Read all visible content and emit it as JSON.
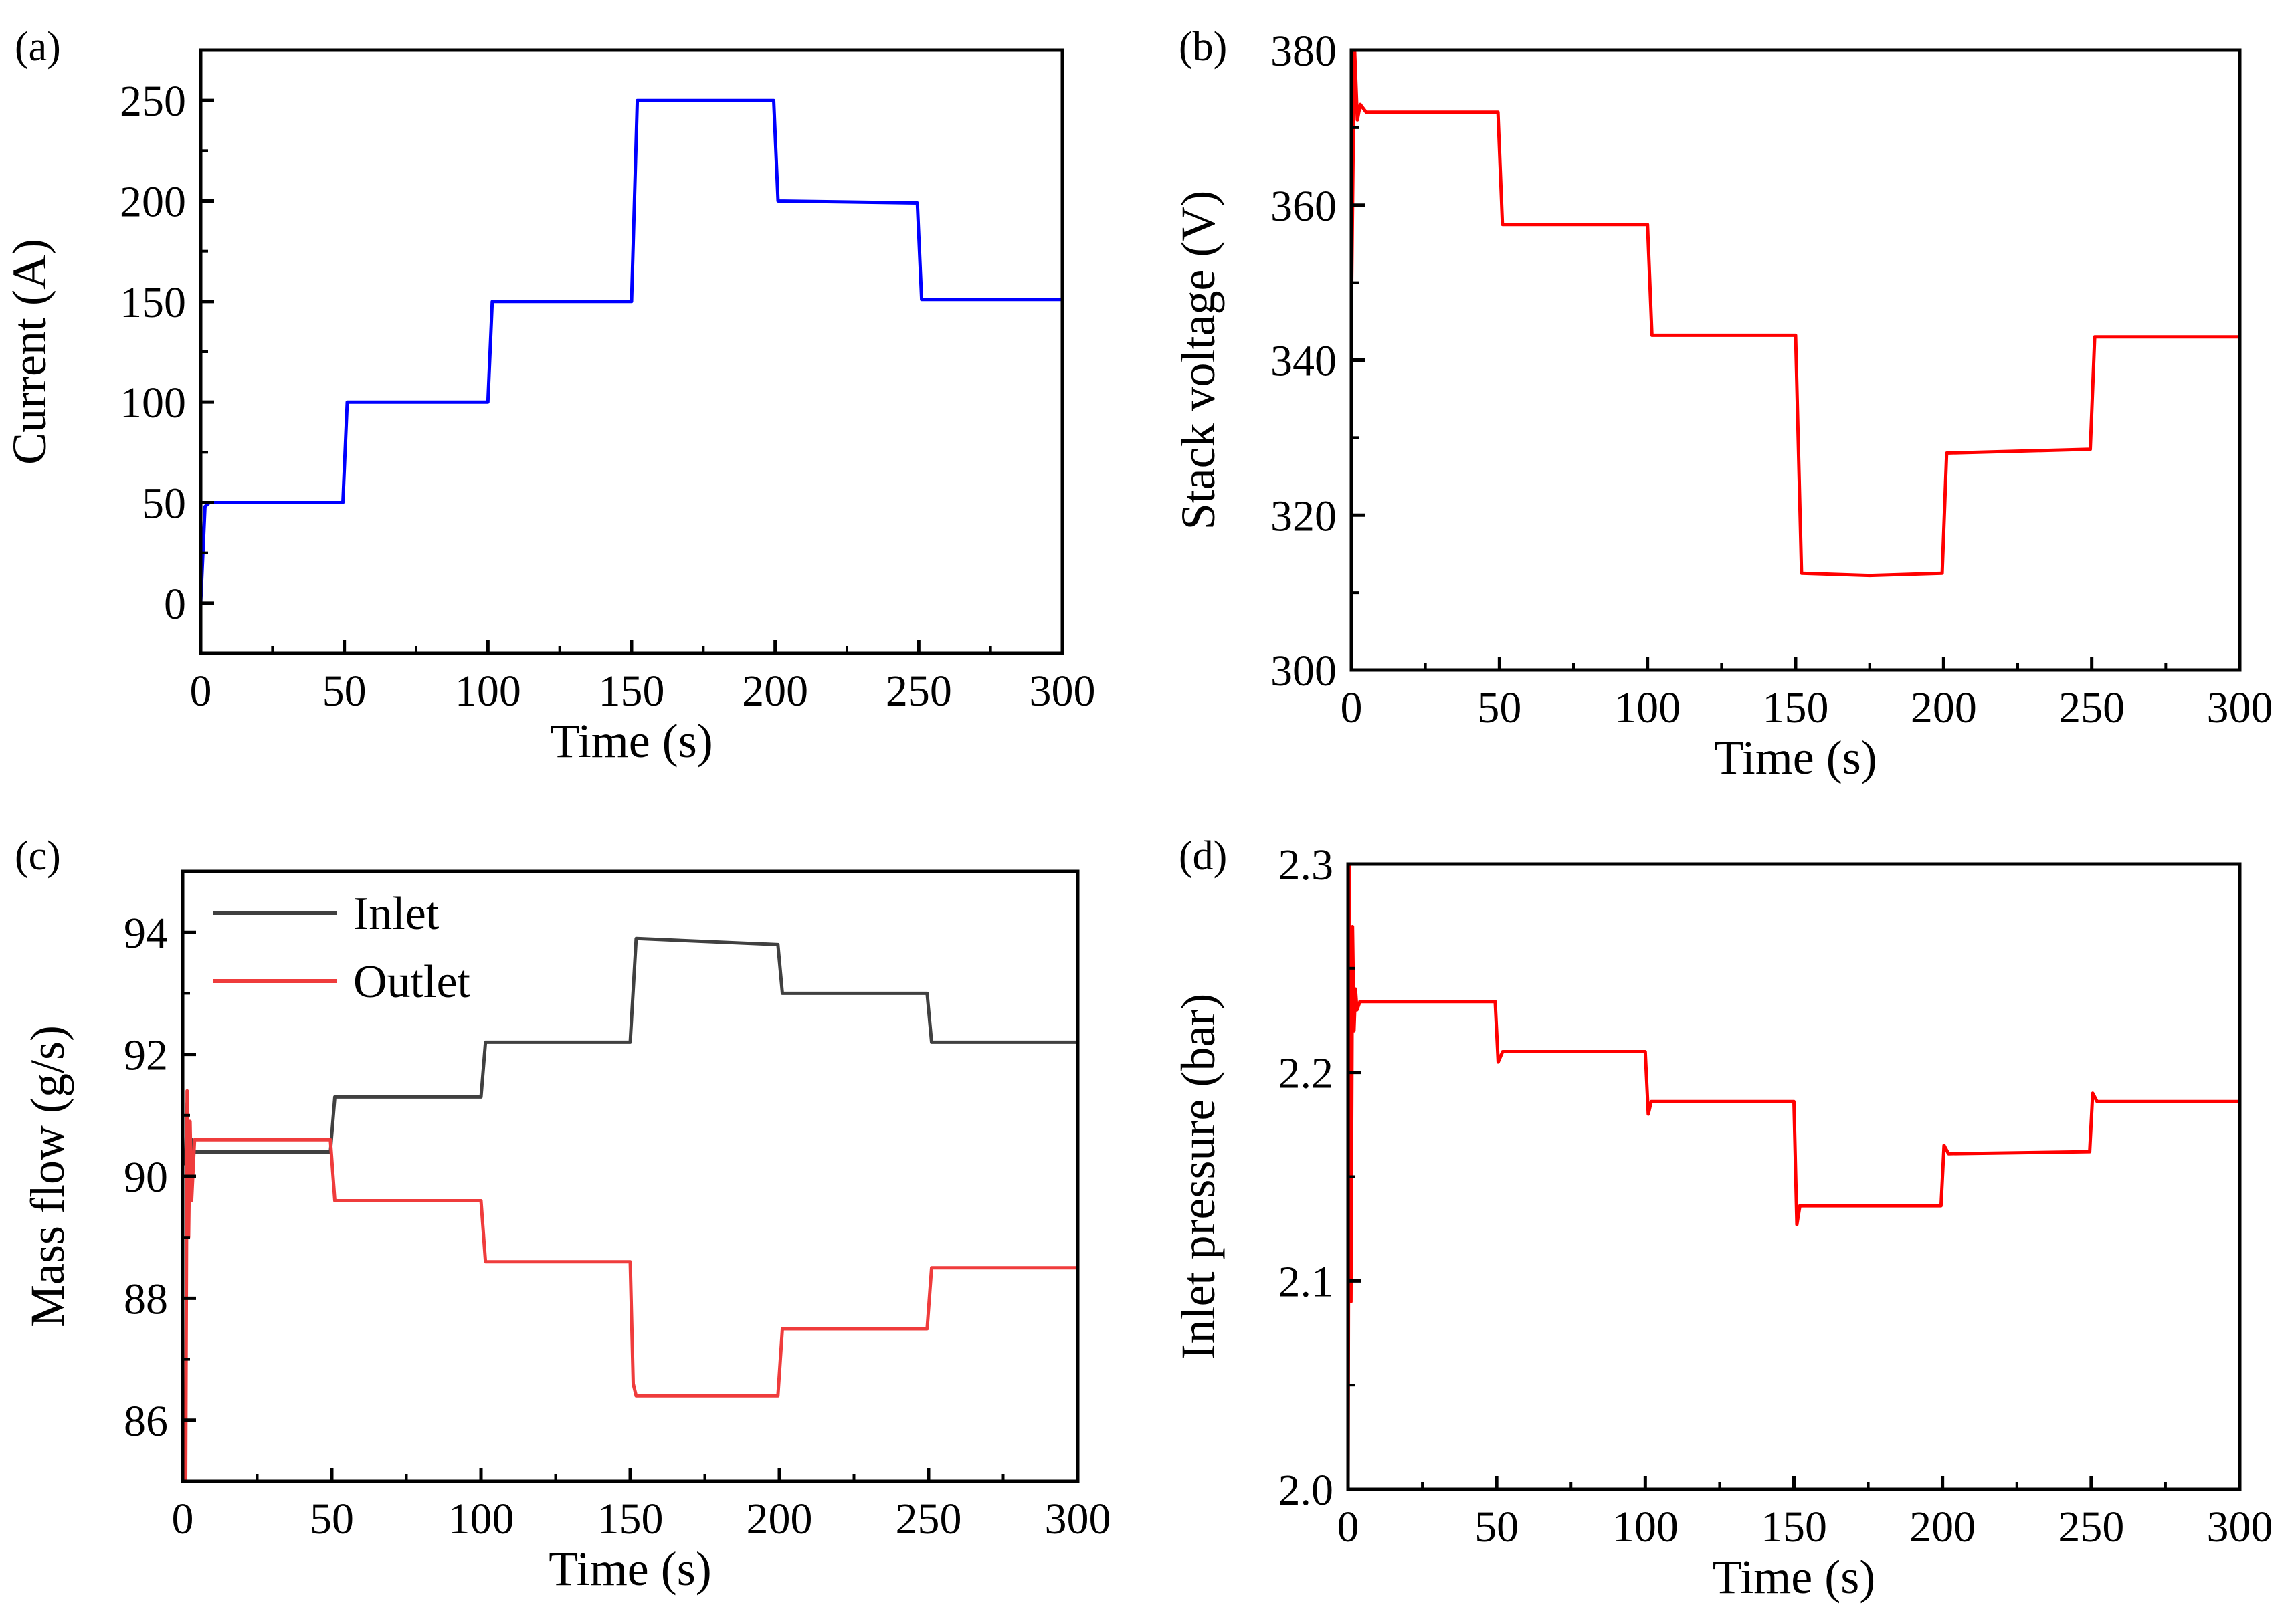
{
  "figure": {
    "panels": [
      {
        "panel_label": "(a)"
      },
      {
        "panel_label": "(b)"
      },
      {
        "panel_label": "(c)"
      },
      {
        "panel_label": "(d)"
      }
    ]
  },
  "chart_data": [
    {
      "type": "line",
      "title": "",
      "xlabel": "Time (s)",
      "ylabel": "Current (A)",
      "xlim": [
        0,
        300
      ],
      "ylim": [
        -25,
        275
      ],
      "xticks": [
        0,
        50,
        100,
        150,
        200,
        250,
        300
      ],
      "yticks": [
        0,
        50,
        100,
        150,
        200,
        250
      ],
      "grid": false,
      "series": [
        {
          "name": "Current",
          "color": "#0000ff",
          "x": [
            0,
            1.5,
            3,
            49.5,
            51,
            100,
            101.5,
            150,
            152,
            199.5,
            201,
            249.5,
            251,
            300
          ],
          "y": [
            0,
            48,
            50,
            50,
            100,
            100,
            150,
            150,
            250,
            250,
            200,
            199,
            151,
            151
          ]
        }
      ]
    },
    {
      "type": "line",
      "title": "",
      "xlabel": "Time (s)",
      "ylabel": "Stack voltage (V)",
      "xlim": [
        0,
        300
      ],
      "ylim": [
        300,
        380
      ],
      "xticks": [
        0,
        50,
        100,
        150,
        200,
        250,
        300
      ],
      "yticks": [
        300,
        320,
        340,
        360,
        380
      ],
      "grid": false,
      "series": [
        {
          "name": "Stack voltage",
          "color": "#ff0000",
          "x": [
            0,
            1,
            2,
            3,
            5,
            49.5,
            51,
            100,
            101.5,
            150,
            152,
            175,
            199.5,
            201,
            249.5,
            251,
            300
          ],
          "y": [
            346,
            381,
            371,
            373,
            372,
            372,
            357.5,
            357.5,
            343.2,
            343.2,
            312.5,
            312.2,
            312.5,
            328,
            328.5,
            343,
            343
          ]
        }
      ]
    },
    {
      "type": "line",
      "title": "",
      "xlabel": "Time (s)",
      "ylabel": "Mass flow (g/s)",
      "xlim": [
        0,
        300
      ],
      "ylim": [
        85,
        95
      ],
      "xticks": [
        0,
        50,
        100,
        150,
        200,
        250,
        300
      ],
      "yticks": [
        86,
        88,
        90,
        92,
        94
      ],
      "legend": {
        "placement": "top-left"
      },
      "grid": false,
      "series": [
        {
          "name": "Inlet",
          "color": "#404040",
          "x": [
            1,
            1.5,
            2,
            3,
            4,
            49.5,
            51,
            100,
            101.5,
            150,
            152,
            199.5,
            201,
            249.5,
            251,
            300
          ],
          "y": [
            90.2,
            91.2,
            89.5,
            90.6,
            90.4,
            90.4,
            91.3,
            91.3,
            92.2,
            92.2,
            93.9,
            93.8,
            93.0,
            93.0,
            92.2,
            92.2
          ]
        },
        {
          "name": "Outlet",
          "color": "#ef3c3c",
          "x": [
            1,
            1.5,
            2,
            2.5,
            3,
            4,
            49.5,
            51,
            100,
            101.5,
            150,
            151,
            152,
            199.5,
            201,
            249.5,
            251,
            300
          ],
          "y": [
            85,
            91.4,
            89.0,
            90.9,
            89.6,
            90.6,
            90.6,
            89.6,
            89.6,
            88.6,
            88.6,
            86.6,
            86.4,
            86.4,
            87.5,
            87.5,
            88.5,
            88.5
          ]
        }
      ]
    },
    {
      "type": "line",
      "title": "",
      "xlabel": "Time (s)",
      "ylabel": "Inlet pressure (bar)",
      "xlim": [
        0,
        300
      ],
      "ylim": [
        2.0,
        2.3
      ],
      "xticks": [
        0,
        50,
        100,
        150,
        200,
        250,
        300
      ],
      "yticks": [
        2.0,
        2.1,
        2.2,
        2.3
      ],
      "grid": false,
      "series": [
        {
          "name": "Inlet pressure",
          "color": "#ff0000",
          "x": [
            0,
            0.5,
            1,
            1.5,
            2,
            2.5,
            3,
            4,
            49.5,
            50.5,
            52,
            100,
            101,
            102,
            150,
            151,
            152,
            199.5,
            200.5,
            202,
            249.5,
            250.5,
            252,
            300
          ],
          "y": [
            2.0,
            2.3,
            2.09,
            2.27,
            2.22,
            2.24,
            2.23,
            2.234,
            2.234,
            2.205,
            2.21,
            2.21,
            2.18,
            2.186,
            2.186,
            2.127,
            2.136,
            2.136,
            2.165,
            2.161,
            2.162,
            2.19,
            2.186,
            2.186
          ]
        }
      ]
    }
  ]
}
